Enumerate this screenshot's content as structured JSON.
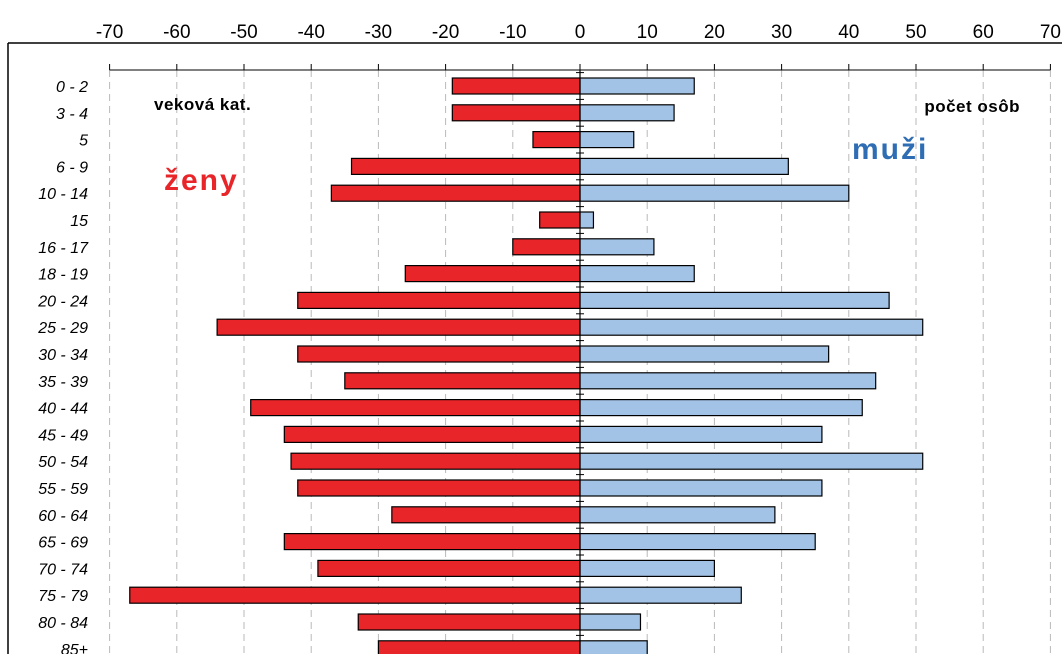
{
  "chart_data": {
    "type": "bar",
    "orientation": "horizontal",
    "subtype": "population-pyramid",
    "title": "",
    "xlabel": "",
    "ylabel": "",
    "xlim": [
      -70,
      70
    ],
    "xticks": [
      -70,
      -60,
      -50,
      -40,
      -30,
      -20,
      -10,
      0,
      10,
      20,
      30,
      40,
      50,
      60,
      70
    ],
    "grid": true,
    "categories": [
      "0 - 2",
      "3 - 4",
      "5",
      "6 - 9",
      "10 - 14",
      "15",
      "16 - 17",
      "18 - 19",
      "20 - 24",
      "25 - 29",
      "30 - 34",
      "35 - 39",
      "40 - 44",
      "45 - 49",
      "50 - 54",
      "55 - 59",
      "60 - 64",
      "65 - 69",
      "70 - 74",
      "75 - 79",
      "80 - 84",
      "85+"
    ],
    "series": [
      {
        "name": "ženy",
        "color": "#e8262a",
        "values": [
          -19,
          -19,
          -7,
          -34,
          -37,
          -6,
          -10,
          -26,
          -42,
          -54,
          -42,
          -35,
          -49,
          -44,
          -43,
          -42,
          -28,
          -44,
          -39,
          -67,
          -33,
          -30
        ]
      },
      {
        "name": "muži",
        "color": "#a2c3e6",
        "values": [
          17,
          14,
          8,
          31,
          40,
          2,
          11,
          17,
          46,
          51,
          37,
          44,
          42,
          36,
          51,
          36,
          29,
          35,
          20,
          24,
          9,
          10
        ]
      }
    ],
    "annotations": {
      "category_caption": "veková kat.",
      "value_caption": "počet osôb",
      "women_label": "ženy",
      "men_label": "muži"
    }
  }
}
